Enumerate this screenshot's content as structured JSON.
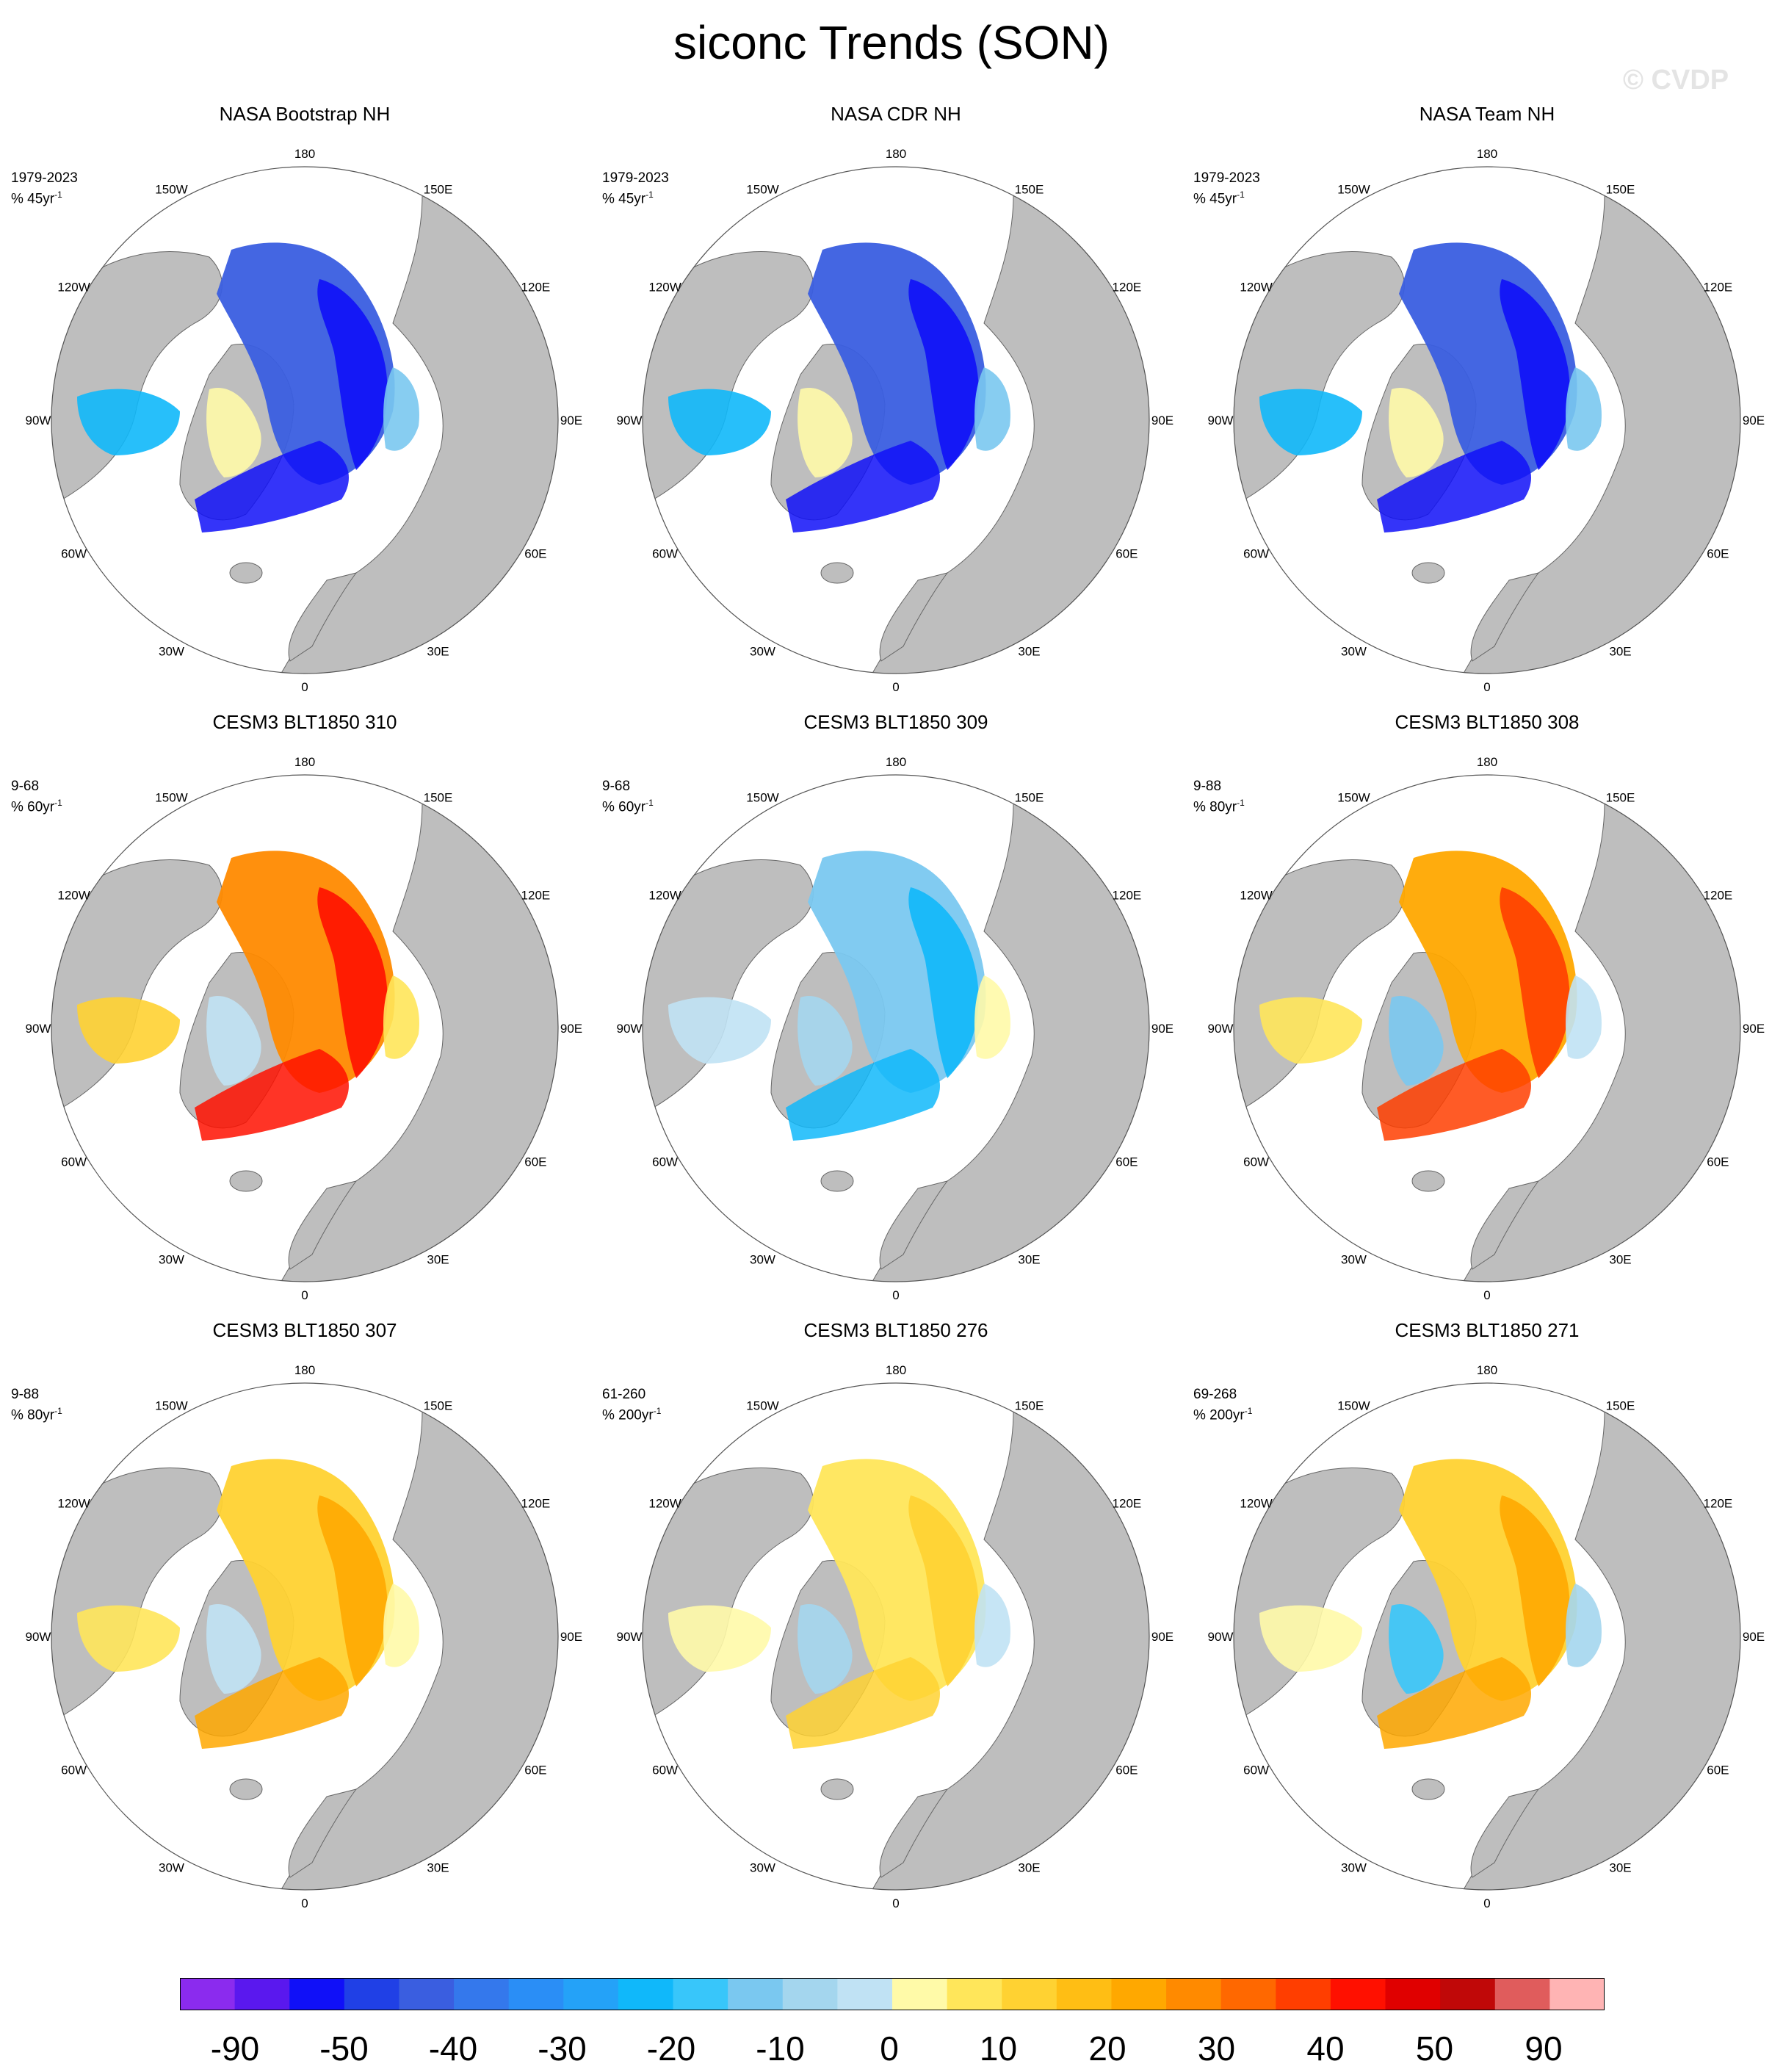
{
  "title": "siconc Trends (SON)",
  "watermark": "© CVDP",
  "map_colors": {
    "land": "#bebebe",
    "ocean": "#ffffff",
    "border": "#666666"
  },
  "longitude_labels": [
    "180",
    "150E",
    "120E",
    "90E",
    "60E",
    "30E",
    "0",
    "30W",
    "60W",
    "90W",
    "120W",
    "150W"
  ],
  "panels": [
    {
      "title": "NASA Bootstrap NH",
      "period": "1979-2023",
      "units": "% 45yr",
      "pattern": "obs"
    },
    {
      "title": "NASA CDR NH",
      "period": "1979-2023",
      "units": "% 45yr",
      "pattern": "obs"
    },
    {
      "title": "NASA Team NH",
      "period": "1979-2023",
      "units": "% 45yr",
      "pattern": "obs"
    },
    {
      "title": "CESM3 BLT1850 310",
      "period": "9-68",
      "units": "% 60yr",
      "pattern": "warm-strong"
    },
    {
      "title": "CESM3 BLT1850 309",
      "period": "9-68",
      "units": "% 60yr",
      "pattern": "cool-mild"
    },
    {
      "title": "CESM3 BLT1850 308",
      "period": "9-88",
      "units": "% 80yr",
      "pattern": "warm-mixed"
    },
    {
      "title": "CESM3 BLT1850 307",
      "period": "9-88",
      "units": "% 80yr",
      "pattern": "warm-mild"
    },
    {
      "title": "CESM3 BLT1850 276",
      "period": "61-260",
      "units": "% 200yr",
      "pattern": "mixed-weak"
    },
    {
      "title": "CESM3 BLT1850 271",
      "period": "69-268",
      "units": "% 200yr",
      "pattern": "cool-warm"
    }
  ],
  "colorbar": {
    "colors": [
      "#8b2bee",
      "#5a18ee",
      "#1010f8",
      "#2040e6",
      "#3a5ee0",
      "#3478ec",
      "#2a8ef6",
      "#24a2f8",
      "#10b8fa",
      "#38c6fa",
      "#7ac8f0",
      "#a4d6ee",
      "#c0e2f4",
      "#fffaa8",
      "#ffe65a",
      "#ffd232",
      "#ffbe14",
      "#ffa800",
      "#ff8a00",
      "#ff6800",
      "#ff3e00",
      "#ff1000",
      "#e00000",
      "#c00808",
      "#e05c5c",
      "#ffb4b4"
    ],
    "labels": [
      "-90",
      "-50",
      "-40",
      "-30",
      "-20",
      "-10",
      "0",
      "10",
      "20",
      "30",
      "40",
      "50",
      "90"
    ]
  }
}
